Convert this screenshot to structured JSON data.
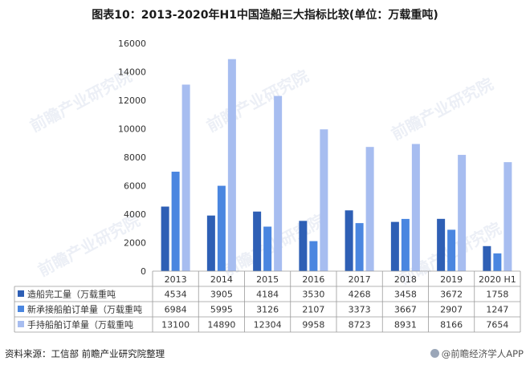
{
  "title": "图表10：2013-2020年H1中国造船三大指标比较(单位：万载重吨)",
  "footer": {
    "source": "资料来源：工信部 前瞻产业研究院整理",
    "brand": "@前瞻经济学人APP"
  },
  "watermark": "前瞻产业研究院",
  "chart_data": {
    "type": "bar",
    "title": "图表10：2013-2020年H1中国造船三大指标比较(单位：万载重吨)",
    "categories": [
      "2013",
      "2014",
      "2015",
      "2016",
      "2017",
      "2018",
      "2019",
      "2020 H1"
    ],
    "ylim": [
      0,
      16000
    ],
    "yticks": [
      0,
      2000,
      4000,
      6000,
      8000,
      10000,
      12000,
      14000,
      16000
    ],
    "grid": false,
    "legend": "data-table-below",
    "series": [
      {
        "name": "造船完工量（万载重吨",
        "color": "#2e5fb5",
        "values": [
          4534,
          3905,
          4184,
          3530,
          4268,
          3458,
          3672,
          1758
        ]
      },
      {
        "name": "新承接船舶订单量（万载重吨",
        "color": "#4a86e0",
        "values": [
          6984,
          5995,
          3126,
          2107,
          3373,
          3667,
          2907,
          1247
        ]
      },
      {
        "name": "手持船舶订单量（万载重吨",
        "color": "#a7bdf0",
        "values": [
          13100,
          14890,
          12304,
          9958,
          8723,
          8931,
          8166,
          7654
        ]
      }
    ]
  }
}
